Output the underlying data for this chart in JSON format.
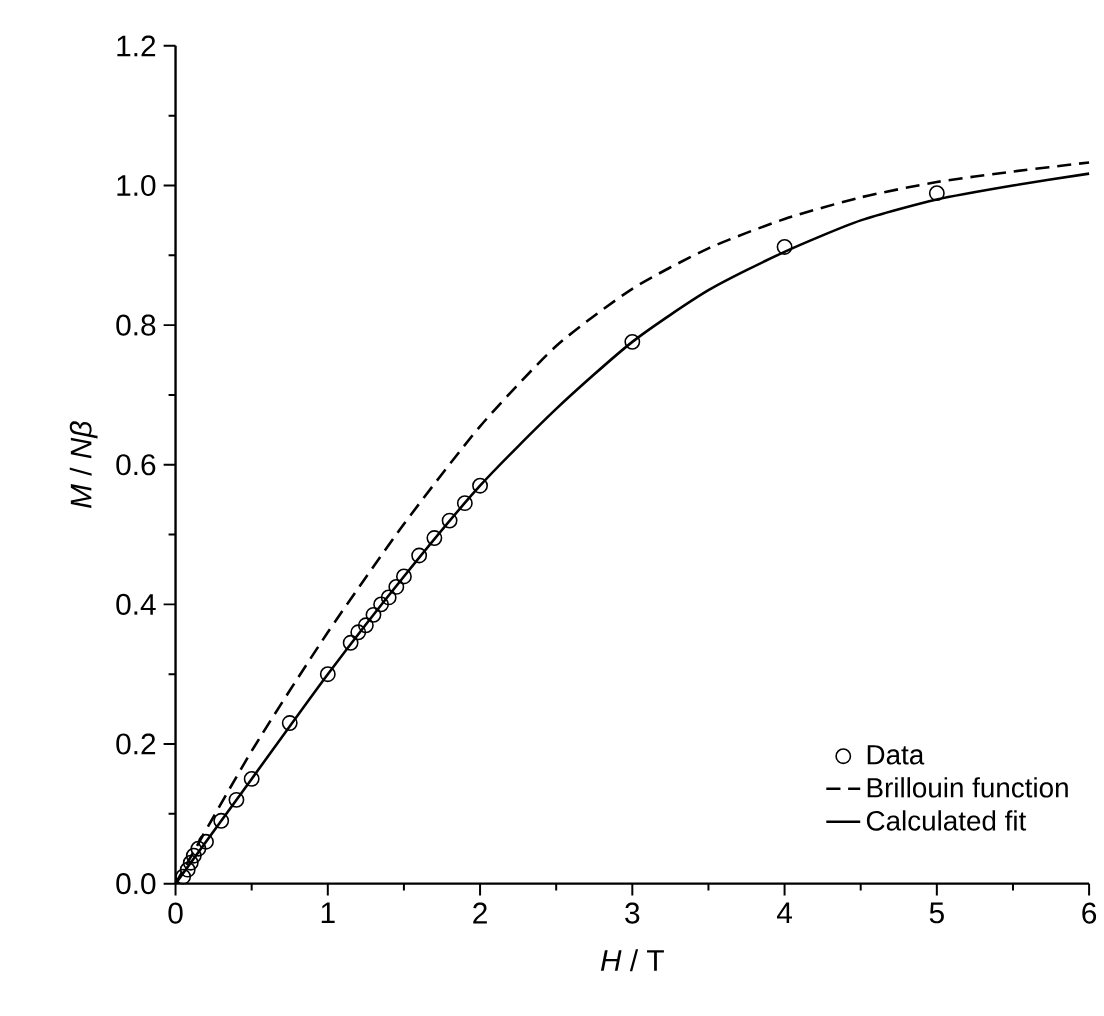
{
  "chart_data": {
    "type": "line",
    "xlabel": "*H* / T",
    "ylabel": "*M* / *Nβ*",
    "xlim": [
      0,
      6
    ],
    "ylim": [
      0,
      1.2
    ],
    "xticks": [
      0,
      1,
      2,
      3,
      4,
      5,
      6
    ],
    "yticks": [
      {
        "value": 0,
        "label": "0.0"
      },
      0.2,
      0.4,
      0.6,
      0.8,
      {
        "value": 1,
        "label": "1.0"
      },
      1.2
    ],
    "grid": false,
    "legend": "bottom right",
    "series": [
      {
        "name": "Data",
        "type": "scatter",
        "marker": "circle",
        "color": "#000000",
        "x": [
          0.05,
          0.08,
          0.1,
          0.12,
          0.15,
          0.2,
          0.3,
          0.4,
          0.5,
          0.75,
          1.0,
          1.15,
          1.2,
          1.25,
          1.3,
          1.35,
          1.4,
          1.45,
          1.5,
          1.6,
          1.7,
          1.8,
          1.9,
          2.0,
          3,
          4,
          5
        ],
        "values": [
          0.01,
          0.02,
          0.03,
          0.04,
          0.05,
          0.06,
          0.09,
          0.12,
          0.15,
          0.23,
          0.3,
          0.345,
          0.36,
          0.37,
          0.385,
          0.4,
          0.41,
          0.425,
          0.44,
          0.47,
          0.495,
          0.52,
          0.545,
          0.57,
          0.776,
          0.912,
          0.989
        ]
      },
      {
        "name": "Brillouin function",
        "type": "line",
        "line_style": "dashed",
        "color": "#000000",
        "x": [
          0,
          0.5,
          1,
          1.5,
          2,
          2.5,
          3,
          3.5,
          4,
          4.5,
          5,
          5.5,
          6
        ],
        "values": [
          0,
          0.19,
          0.36,
          0.515,
          0.655,
          0.77,
          0.852,
          0.91,
          0.952,
          0.983,
          1.005,
          1.02,
          1.033
        ]
      },
      {
        "name": "Calculated fit",
        "type": "line",
        "line_style": "solid",
        "color": "#000000",
        "x": [
          0,
          0.5,
          1,
          1.5,
          2,
          2.5,
          3,
          3.5,
          4,
          4.5,
          5,
          5.5,
          6
        ],
        "values": [
          0,
          0.15,
          0.3,
          0.44,
          0.57,
          0.68,
          0.776,
          0.85,
          0.905,
          0.95,
          0.98,
          1.0,
          1.017
        ]
      }
    ]
  }
}
